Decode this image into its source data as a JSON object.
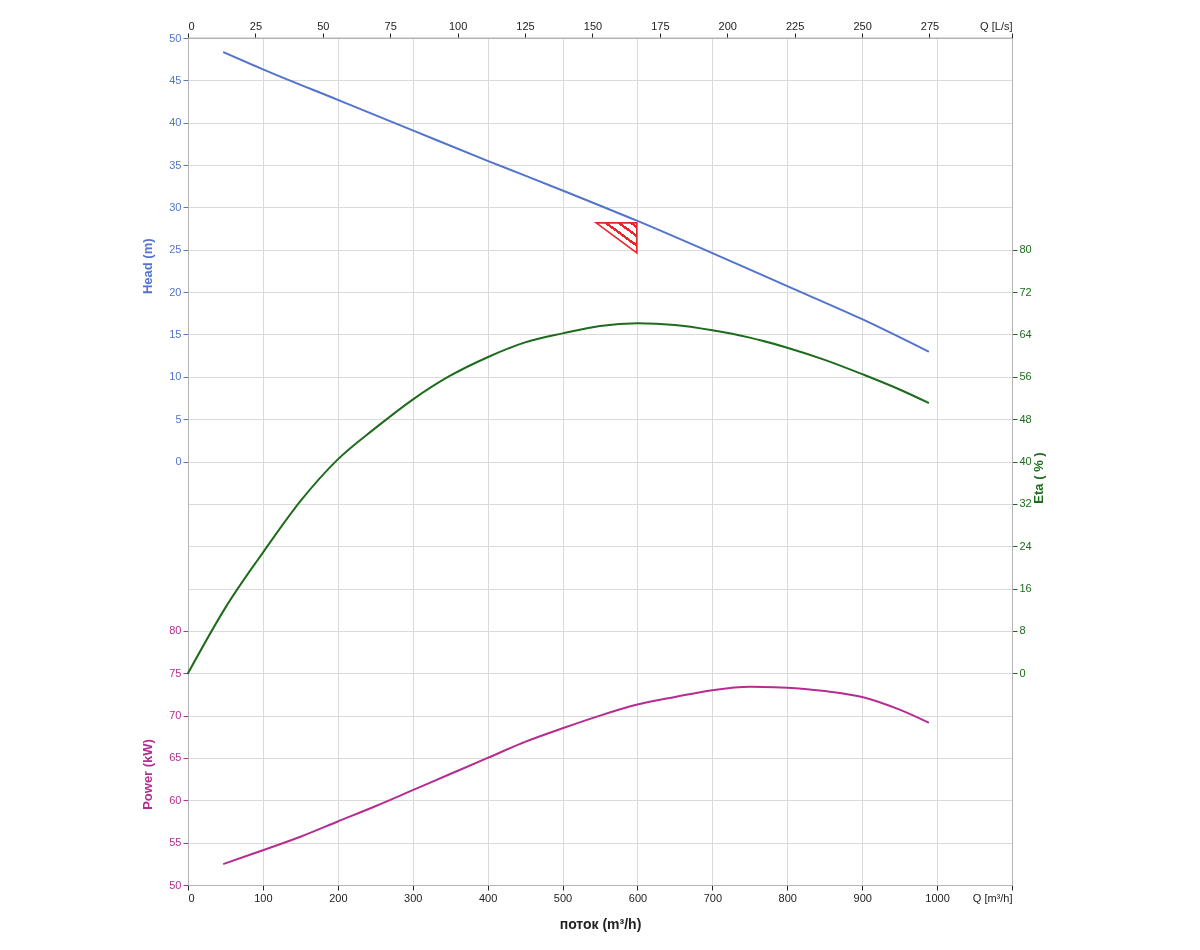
{
  "chart_data": {
    "type": "line",
    "xlabel": "поток (m³/h)",
    "ylabel": "Head (m)",
    "y2label": "Eta ( % )",
    "y3label": "Power (kW)",
    "xlim": [
      0,
      1100
    ],
    "xticks": [
      0,
      100,
      200,
      300,
      400,
      500,
      600,
      700,
      800,
      900,
      1000,
      {
        "value": 1100,
        "label": "Q [m³/h]"
      }
    ],
    "x2lim": [
      0,
      305.6
    ],
    "x2ticks": [
      0,
      25,
      50,
      75,
      100,
      125,
      150,
      175,
      200,
      225,
      250,
      275,
      {
        "value": 305.6,
        "label": "Q [L/s]"
      }
    ],
    "ylim": [
      -50,
      50
    ],
    "yticks": [
      0,
      5,
      10,
      15,
      20,
      25,
      30,
      35,
      40,
      45,
      50
    ],
    "y2lim": [
      -40,
      120
    ],
    "y2ticks": [
      0,
      8,
      16,
      24,
      32,
      40,
      48,
      56,
      64,
      72,
      80
    ],
    "y3lim": [
      50,
      150
    ],
    "y3ticks": [
      50,
      55,
      60,
      65,
      70,
      75,
      80
    ],
    "grid": true,
    "marker": "none",
    "line_style": "solid",
    "series": [
      {
        "color": "#5274cc",
        "x": [
          48,
          100,
          200,
          300,
          400,
          500,
          600,
          700,
          800,
          900,
          988
        ],
        "values": [
          48.3,
          46.3,
          42.7,
          39.1,
          35.5,
          32.0,
          28.4,
          24.6,
          20.7,
          16.8,
          13.0
        ]
      },
      {
        "type": "scatter",
        "marker": "triangle",
        "color": "#e8262a",
        "x": [
          572
        ],
        "values": [
          26.4
        ]
      },
      {
        "axis": "y2",
        "color": "#1d6b1d",
        "x": [
          0,
          50,
          100,
          150,
          200,
          250,
          300,
          350,
          400,
          450,
          500,
          550,
          600,
          650,
          700,
          750,
          800,
          850,
          900,
          950,
          988
        ],
        "values": [
          0,
          12.4,
          22.8,
          32.5,
          40.4,
          46.3,
          51.7,
          56.2,
          59.7,
          62.5,
          64.2,
          65.6,
          66.1,
          65.8,
          64.8,
          63.4,
          61.5,
          59.2,
          56.5,
          53.6,
          51.1
        ]
      },
      {
        "axis": "y3",
        "color": "#b52d91",
        "x": [
          48,
          100,
          150,
          200,
          250,
          300,
          350,
          400,
          450,
          500,
          550,
          600,
          650,
          700,
          750,
          800,
          850,
          900,
          950,
          988
        ],
        "values": [
          52.5,
          54.1,
          55.7,
          57.5,
          59.3,
          61.2,
          63.1,
          65.0,
          66.9,
          68.5,
          70.0,
          71.3,
          72.2,
          73.0,
          73.4,
          73.3,
          72.9,
          72.2,
          70.7,
          69.2
        ]
      }
    ]
  }
}
